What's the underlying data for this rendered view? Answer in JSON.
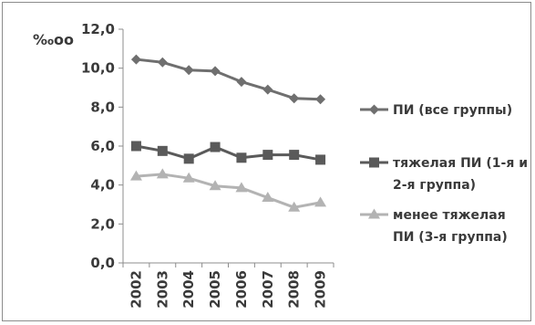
{
  "chart_data": {
    "type": "line",
    "title": "",
    "xlabel": "",
    "ylabel": "‰оо",
    "ylim": [
      0,
      12
    ],
    "yticks": [
      "0,0",
      "2,0",
      "4,0",
      "6,0",
      "8,0",
      "10,0",
      "12,0"
    ],
    "categories": [
      "2002",
      "2003",
      "2004",
      "2005",
      "2006",
      "2007",
      "2008",
      "2009"
    ],
    "grid": false,
    "legend_position": "right",
    "series": [
      {
        "name": "ПИ (все группы)",
        "legend_lines": [
          "ПИ (все группы)"
        ],
        "marker": "diamond",
        "color": "#6f6f6f",
        "values": [
          10.45,
          10.3,
          9.9,
          9.85,
          9.3,
          8.9,
          8.45,
          8.4
        ]
      },
      {
        "name": "тяжелая ПИ (1-я и 2-я группа)",
        "legend_lines": [
          "тяжелая ПИ (1-я и",
          "2-я группа)"
        ],
        "marker": "square",
        "color": "#5a5a5a",
        "values": [
          6.0,
          5.75,
          5.35,
          5.95,
          5.4,
          5.55,
          5.55,
          5.3
        ]
      },
      {
        "name": "менее тяжелая ПИ (3-я группа)",
        "legend_lines": [
          "менее тяжелая",
          "ПИ (3-я группа)"
        ],
        "marker": "triangle",
        "color": "#b3b3b3",
        "values": [
          4.45,
          4.55,
          4.35,
          3.95,
          3.85,
          3.35,
          2.85,
          3.1
        ]
      }
    ]
  }
}
